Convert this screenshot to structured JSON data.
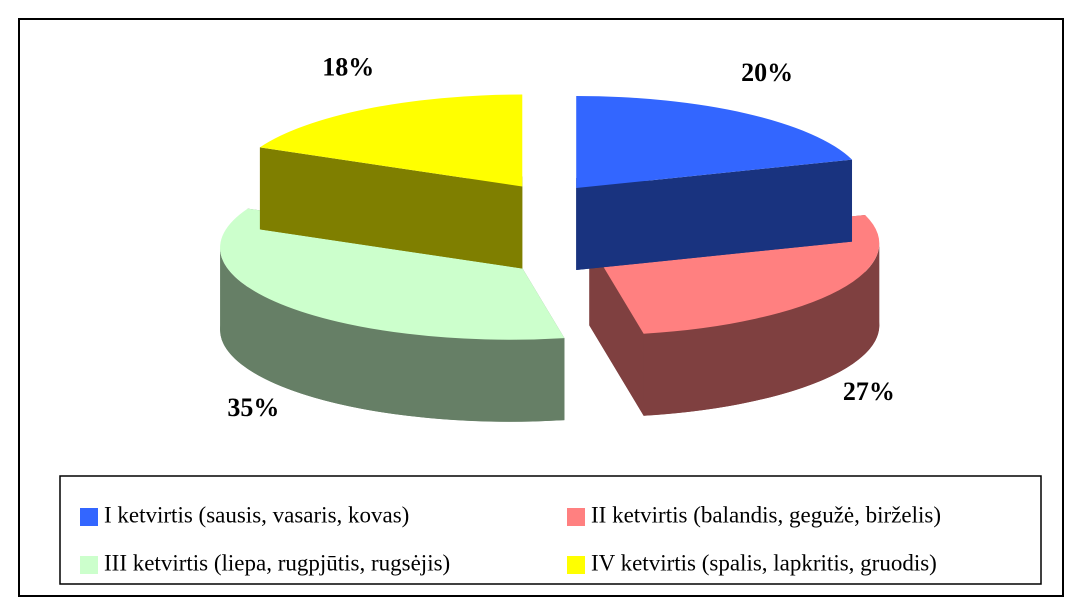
{
  "chart_data": {
    "type": "pie",
    "categories": [
      "I ketvirtis (sausis, vasaris, kovas)",
      "II ketvirtis (balandis, gegužė, birželis)",
      "III ketvirtis (liepa, rugpjūtis, rugsėjis)",
      "IV ketvirtis (spalis, lapkritis, gruodis)"
    ],
    "values": [
      20,
      27,
      35,
      18
    ],
    "value_labels": [
      "20%",
      "27%",
      "35%",
      "18%"
    ],
    "colors": [
      "#3366ff",
      "#ff8080",
      "#ccffcc",
      "#ffff00"
    ],
    "legend": "bottom"
  }
}
